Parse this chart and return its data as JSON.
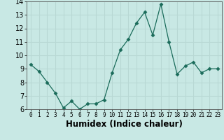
{
  "x": [
    0,
    1,
    2,
    3,
    4,
    5,
    6,
    7,
    8,
    9,
    10,
    11,
    12,
    13,
    14,
    15,
    16,
    17,
    18,
    19,
    20,
    21,
    22,
    23
  ],
  "y": [
    9.3,
    8.8,
    8.0,
    7.2,
    6.1,
    6.6,
    6.0,
    6.4,
    6.4,
    6.7,
    8.7,
    10.4,
    11.2,
    12.4,
    13.2,
    11.5,
    13.8,
    11.0,
    8.6,
    9.2,
    9.5,
    8.7,
    9.0,
    9.0
  ],
  "xlabel": "Humidex (Indice chaleur)",
  "ylim": [
    6,
    14
  ],
  "xlim_left": -0.5,
  "xlim_right": 23.5,
  "yticks": [
    6,
    7,
    8,
    9,
    10,
    11,
    12,
    13,
    14
  ],
  "xticks": [
    0,
    1,
    2,
    3,
    4,
    5,
    6,
    7,
    8,
    9,
    10,
    11,
    12,
    13,
    14,
    15,
    16,
    17,
    18,
    19,
    20,
    21,
    22,
    23
  ],
  "line_color": "#1a6b5a",
  "marker": "D",
  "marker_size": 2.5,
  "bg_color": "#c8e8e4",
  "grid_color": "#b8d8d4",
  "xlabel_fontsize": 8.5,
  "tick_fontsize_x": 5.5,
  "tick_fontsize_y": 7
}
